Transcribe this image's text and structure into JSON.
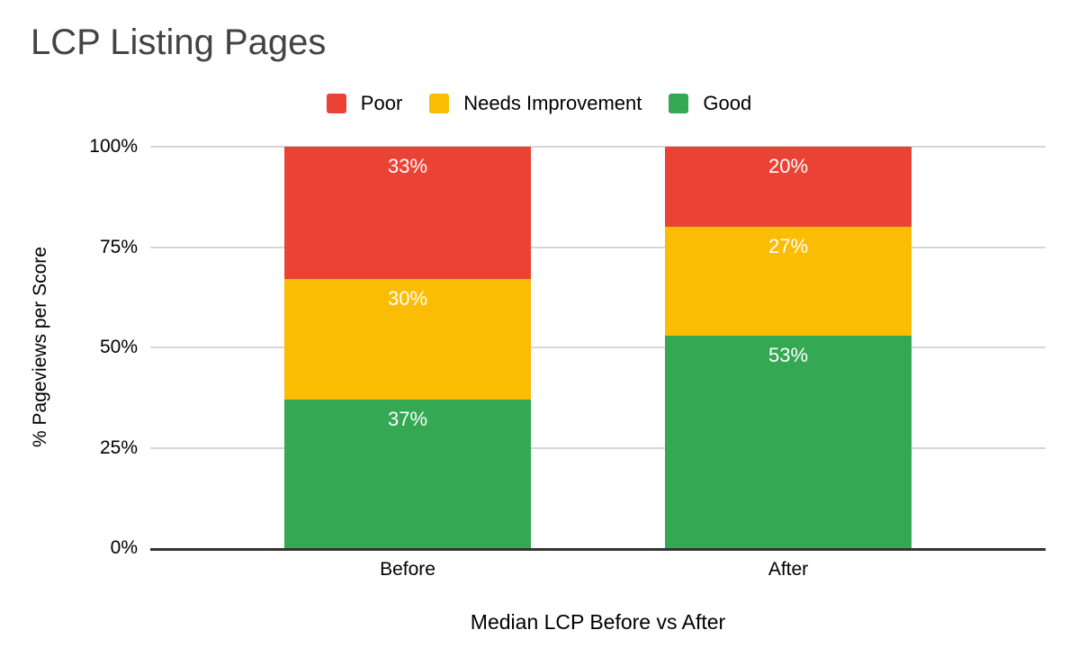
{
  "page": {
    "background": "#ffffff"
  },
  "style": {
    "title_color": "#434343",
    "text_color": "#000000",
    "data_label_color": "#ffffff",
    "gridline_color": "#d6d6d6",
    "axis_line_color": "#333333"
  },
  "chart_data": {
    "type": "bar",
    "variant": "stacked-column-100pct",
    "title": "LCP Listing Pages",
    "xlabel": "Median LCP Before vs After",
    "ylabel": "% Pageviews per Score",
    "categories": [
      "Before",
      "After"
    ],
    "series": [
      {
        "name": "Good",
        "color": "#34A853",
        "values": [
          37,
          53
        ]
      },
      {
        "name": "Needs Improvement",
        "color": "#FBBC04",
        "values": [
          30,
          27
        ]
      },
      {
        "name": "Poor",
        "color": "#EA4335",
        "values": [
          33,
          20
        ]
      }
    ],
    "stack_order_bottom_to_top": [
      "Good",
      "Needs Improvement",
      "Poor"
    ],
    "data_labels": {
      "format": "{value}%",
      "color": "#ffffff"
    },
    "ylim": [
      0,
      100
    ],
    "yticks": [
      {
        "label": "0%",
        "value": 0
      },
      {
        "label": "25%",
        "value": 25
      },
      {
        "label": "50%",
        "value": 50
      },
      {
        "label": "75%",
        "value": 75
      },
      {
        "label": "100%",
        "value": 100
      }
    ],
    "grid": "horizontal",
    "legend": {
      "position": "top",
      "items": [
        {
          "label": "Poor",
          "color": "#EA4335"
        },
        {
          "label": "Needs Improvement",
          "color": "#FBBC04"
        },
        {
          "label": "Good",
          "color": "#34A853"
        }
      ]
    }
  }
}
